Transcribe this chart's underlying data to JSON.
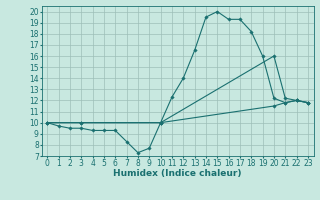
{
  "xlabel": "Humidex (Indice chaleur)",
  "ylabel": "",
  "bg_color": "#c8e8e0",
  "line_color": "#1a7070",
  "xlim": [
    -0.5,
    23.5
  ],
  "ylim": [
    7,
    20.5
  ],
  "xticks": [
    0,
    1,
    2,
    3,
    4,
    5,
    6,
    7,
    8,
    9,
    10,
    11,
    12,
    13,
    14,
    15,
    16,
    17,
    18,
    19,
    20,
    21,
    22,
    23
  ],
  "yticks": [
    7,
    8,
    9,
    10,
    11,
    12,
    13,
    14,
    15,
    16,
    17,
    18,
    19,
    20
  ],
  "lines": [
    {
      "x": [
        0,
        1,
        2,
        3,
        4,
        5,
        6,
        7,
        8,
        9,
        10,
        11,
        12,
        13,
        14,
        15,
        16,
        17,
        18,
        19,
        20,
        21,
        22,
        23
      ],
      "y": [
        10,
        9.7,
        9.5,
        9.5,
        9.3,
        9.3,
        9.3,
        8.3,
        7.3,
        7.7,
        10,
        12.3,
        14,
        16.5,
        19.5,
        20,
        19.3,
        19.3,
        18.2,
        16,
        12.2,
        11.8,
        12,
        11.8
      ]
    },
    {
      "x": [
        0,
        3,
        10,
        20,
        21,
        22,
        23
      ],
      "y": [
        10,
        10,
        10,
        16,
        12.2,
        12,
        11.8
      ]
    },
    {
      "x": [
        0,
        3,
        10,
        20,
        21,
        22,
        23
      ],
      "y": [
        10,
        10,
        10,
        11.5,
        11.8,
        12,
        11.8
      ]
    }
  ],
  "grid_color": "#9dbfb8",
  "marker": "D",
  "markersize": 1.8,
  "linewidth": 0.8,
  "fontsize_label": 6.5,
  "fontsize_tick": 5.5
}
